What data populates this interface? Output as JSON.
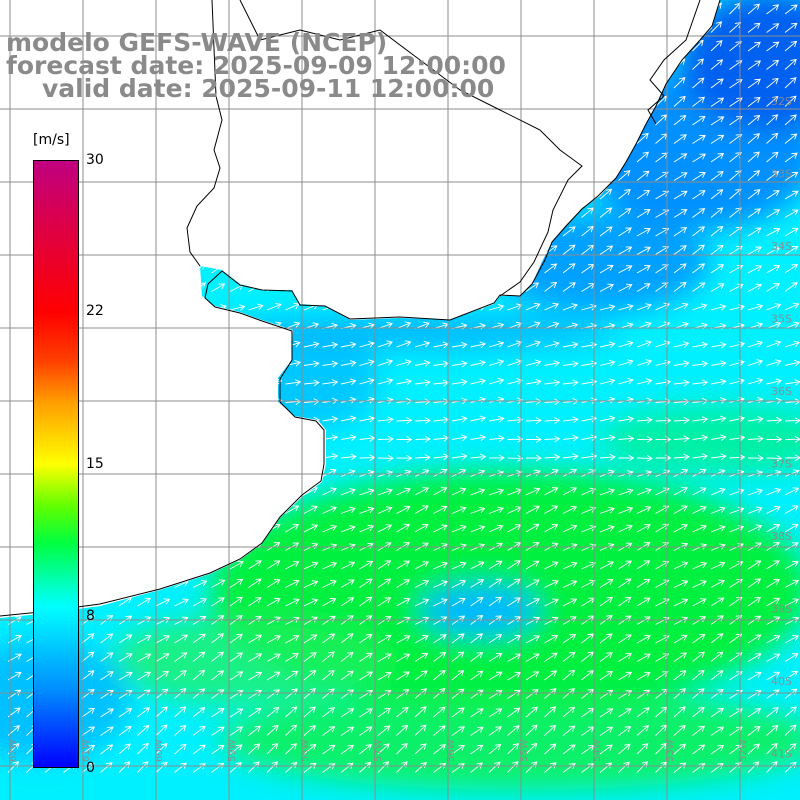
{
  "title": {
    "line1": "modelo GEFS-WAVE (NCEP)",
    "line2": "forecast date: 2025-09-09 12:00:00",
    "line3": "valid date: 2025-09-11 12:00:00"
  },
  "colorbar": {
    "unit": "[m/s]",
    "ticks": [
      {
        "label": "30",
        "value": 30
      },
      {
        "label": "22",
        "value": 22
      },
      {
        "label": "15",
        "value": 15
      },
      {
        "label": "8",
        "value": 8
      },
      {
        "label": "0",
        "value": 0
      }
    ],
    "min": 0,
    "max": 30
  },
  "map": {
    "lat_labels": [
      "32S",
      "33S",
      "34S",
      "35S",
      "36S",
      "37S",
      "38S",
      "39S",
      "40S",
      "41S"
    ],
    "lon_labels": [
      "62W",
      "61W",
      "60W",
      "59W",
      "58W",
      "57W",
      "56W",
      "55W",
      "54W",
      "53W",
      "52W",
      "51W"
    ],
    "colors": {
      "land": "#ffffff",
      "grid": "#8c8c8c",
      "coast": "#000000",
      "arrow": "#ffffff",
      "ocean_cyan": "#00ffff",
      "ocean_green": "#00f040",
      "ocean_blue": "#0080ff"
    }
  }
}
